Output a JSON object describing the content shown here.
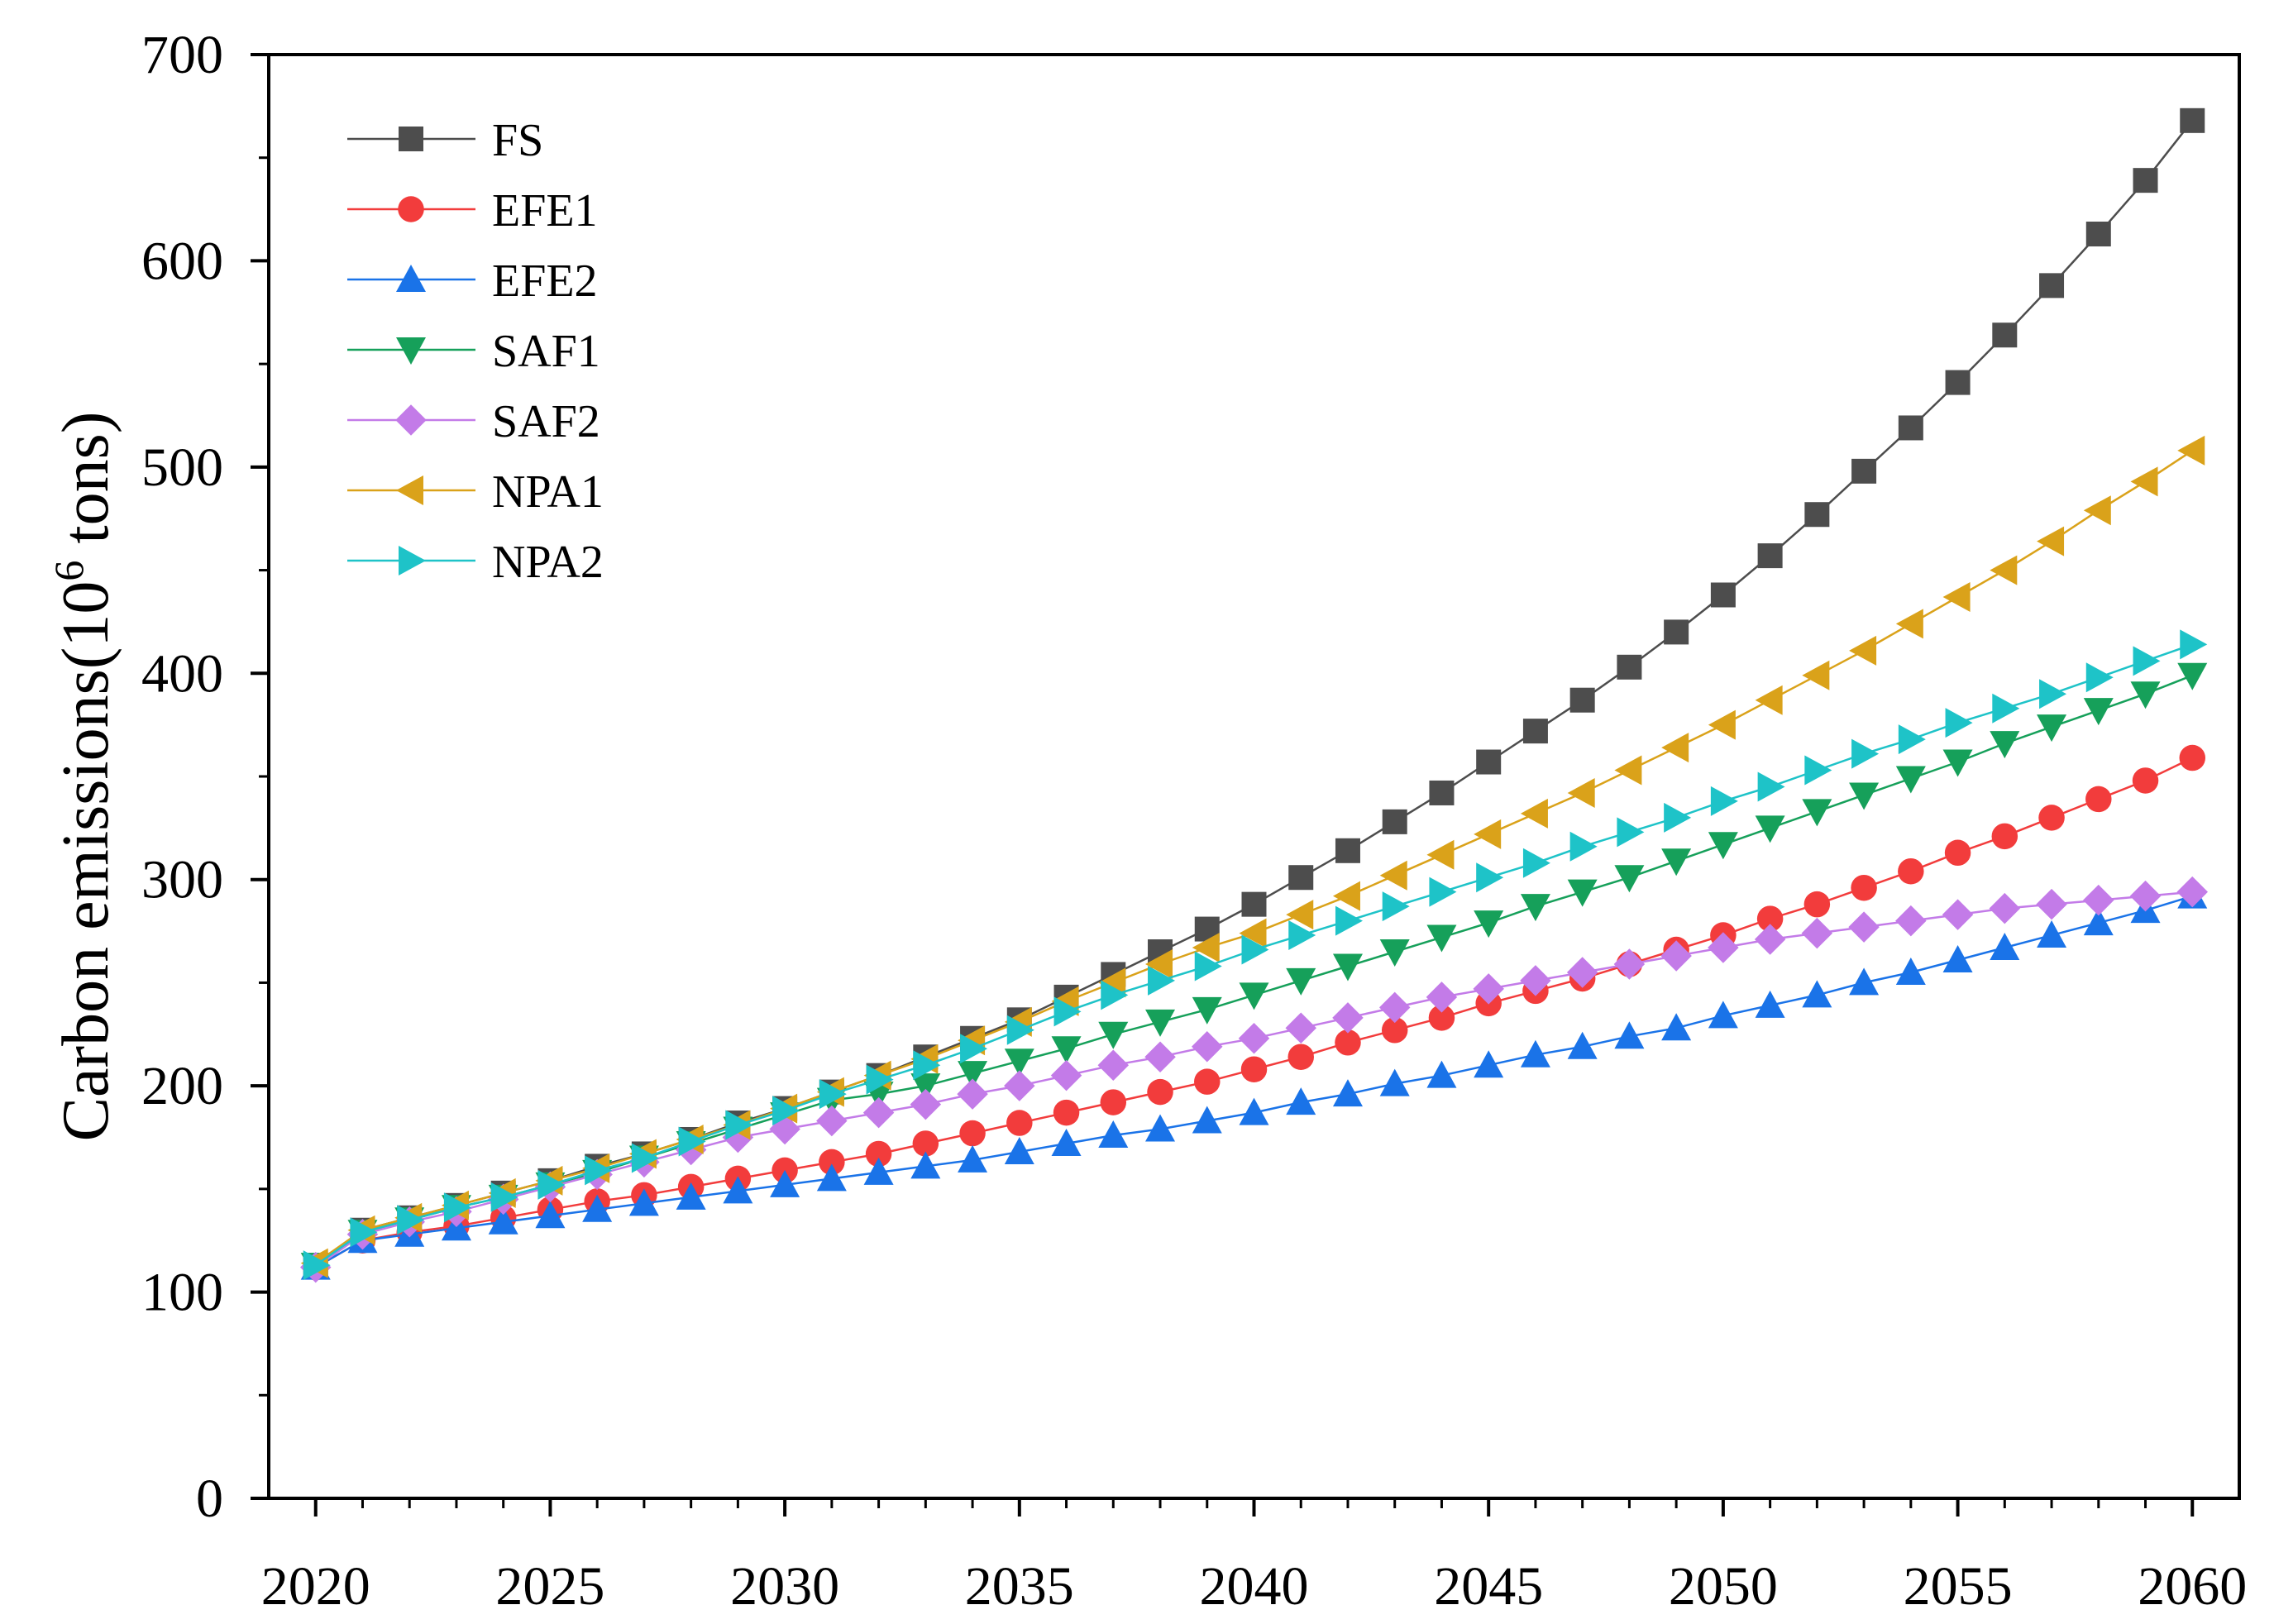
{
  "chart_data": {
    "type": "line",
    "title": "",
    "xlabel": "",
    "ylabel": "Carbon emissions(10",
    "ylabel_superscript": "6",
    "ylabel_suffix": " tons)",
    "xlim": [
      2019,
      2061
    ],
    "ylim": [
      0,
      700
    ],
    "x_ticks": [
      2020,
      2025,
      2030,
      2035,
      2040,
      2045,
      2050,
      2055,
      2060
    ],
    "y_ticks": [
      0,
      100,
      200,
      300,
      400,
      500,
      600,
      700
    ],
    "grid": false,
    "legend_position": "top-left",
    "x": [
      2020,
      2021,
      2022,
      2023,
      2024,
      2025,
      2026,
      2027,
      2028,
      2029,
      2030,
      2031,
      2032,
      2033,
      2034,
      2035,
      2036,
      2037,
      2038,
      2039,
      2040,
      2041,
      2042,
      2043,
      2044,
      2045,
      2046,
      2047,
      2048,
      2049,
      2050,
      2051,
      2052,
      2053,
      2054,
      2055,
      2056,
      2057,
      2058,
      2059,
      2060
    ],
    "series": [
      {
        "name": "FS",
        "color": "#4d4d4d",
        "marker": "square",
        "values": [
          113,
          130,
          136,
          142,
          148,
          154,
          161,
          167,
          174,
          182,
          189,
          197,
          205,
          214,
          223,
          232,
          243,
          254,
          265,
          276,
          288,
          301,
          314,
          328,
          342,
          357,
          372,
          387,
          403,
          420,
          438,
          457,
          477,
          498,
          519,
          541,
          564,
          588,
          613,
          639,
          668
        ]
      },
      {
        "name": "EFE1",
        "color": "#f23c3c",
        "marker": "circle",
        "values": [
          112,
          125,
          129,
          132,
          136,
          140,
          144,
          147,
          151,
          155,
          159,
          163,
          167,
          172,
          177,
          182,
          187,
          192,
          197,
          202,
          208,
          214,
          221,
          227,
          233,
          240,
          246,
          252,
          259,
          266,
          273,
          281,
          288,
          296,
          304,
          313,
          321,
          330,
          339,
          348,
          359
        ]
      },
      {
        "name": "EFE2",
        "color": "#1a73e8",
        "marker": "triangle-up",
        "values": [
          112,
          125,
          128,
          131,
          134,
          137,
          140,
          143,
          146,
          149,
          152,
          155,
          158,
          161,
          164,
          168,
          172,
          176,
          179,
          183,
          187,
          192,
          196,
          201,
          205,
          210,
          215,
          219,
          224,
          228,
          234,
          239,
          244,
          250,
          255,
          261,
          267,
          273,
          279,
          285,
          292
        ]
      },
      {
        "name": "SAF1",
        "color": "#16a05a",
        "marker": "triangle-down",
        "values": [
          113,
          129,
          135,
          141,
          146,
          152,
          158,
          165,
          172,
          179,
          186,
          193,
          196,
          200,
          206,
          212,
          218,
          225,
          231,
          237,
          244,
          251,
          258,
          265,
          272,
          279,
          287,
          294,
          301,
          309,
          317,
          325,
          333,
          341,
          349,
          357,
          366,
          374,
          382,
          390,
          399
        ]
      },
      {
        "name": "SAF2",
        "color": "#c37be8",
        "marker": "diamond",
        "values": [
          112,
          128,
          134,
          139,
          145,
          151,
          157,
          163,
          169,
          175,
          179,
          183,
          187,
          191,
          196,
          200,
          205,
          210,
          214,
          219,
          223,
          228,
          233,
          238,
          243,
          247,
          251,
          255,
          259,
          263,
          267,
          271,
          274,
          277,
          280,
          283,
          286,
          288,
          290,
          292,
          294
        ]
      },
      {
        "name": "NPA1",
        "color": "#daa21a",
        "marker": "triangle-left",
        "values": [
          114,
          130,
          136,
          142,
          148,
          154,
          160,
          167,
          174,
          181,
          189,
          197,
          205,
          213,
          222,
          231,
          241,
          250,
          259,
          267,
          274,
          283,
          292,
          302,
          312,
          322,
          332,
          342,
          353,
          364,
          375,
          387,
          399,
          411,
          424,
          437,
          450,
          464,
          479,
          493,
          508
        ]
      },
      {
        "name": "NPA2",
        "color": "#1ec3c8",
        "marker": "triangle-right",
        "values": [
          113,
          129,
          135,
          141,
          146,
          152,
          159,
          165,
          173,
          181,
          188,
          196,
          203,
          210,
          218,
          227,
          236,
          244,
          251,
          258,
          266,
          273,
          280,
          287,
          294,
          301,
          308,
          316,
          323,
          330,
          338,
          345,
          353,
          361,
          368,
          376,
          383,
          390,
          398,
          406,
          414
        ]
      }
    ]
  }
}
